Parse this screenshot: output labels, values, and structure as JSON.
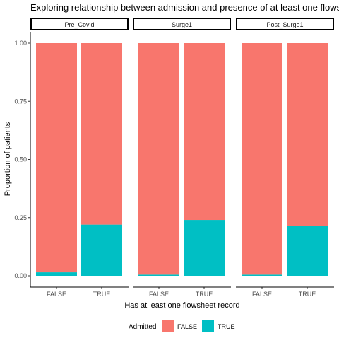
{
  "chart_data": {
    "type": "bar",
    "stacked": true,
    "title": "Exploring relationship between admission and presence of at least one flowsheet record",
    "xlabel": "Has at least one flowsheet record",
    "ylabel": "Proportion of patients",
    "ylim": [
      0,
      1
    ],
    "yticks": [
      "0.00",
      "0.25",
      "0.50",
      "0.75",
      "1.00"
    ],
    "categories": [
      "FALSE",
      "TRUE"
    ],
    "legend": {
      "title": "Admitted",
      "position": "bottom",
      "entries": [
        {
          "label": "FALSE",
          "color": "#F8766D"
        },
        {
          "label": "TRUE",
          "color": "#00BFC4"
        }
      ]
    },
    "facets": [
      {
        "label": "Pre_Covid",
        "series": [
          {
            "name": "TRUE",
            "color": "#00BFC4",
            "values": [
              0.015,
              0.22
            ]
          },
          {
            "name": "FALSE",
            "color": "#F8766D",
            "values": [
              0.985,
              0.78
            ]
          }
        ]
      },
      {
        "label": "Surge1",
        "series": [
          {
            "name": "TRUE",
            "color": "#00BFC4",
            "values": [
              0.005,
              0.24
            ]
          },
          {
            "name": "FALSE",
            "color": "#F8766D",
            "values": [
              0.995,
              0.76
            ]
          }
        ]
      },
      {
        "label": "Post_Surge1",
        "series": [
          {
            "name": "TRUE",
            "color": "#00BFC4",
            "values": [
              0.005,
              0.215
            ]
          },
          {
            "name": "FALSE",
            "color": "#F8766D",
            "values": [
              0.995,
              0.785
            ]
          }
        ]
      }
    ]
  }
}
